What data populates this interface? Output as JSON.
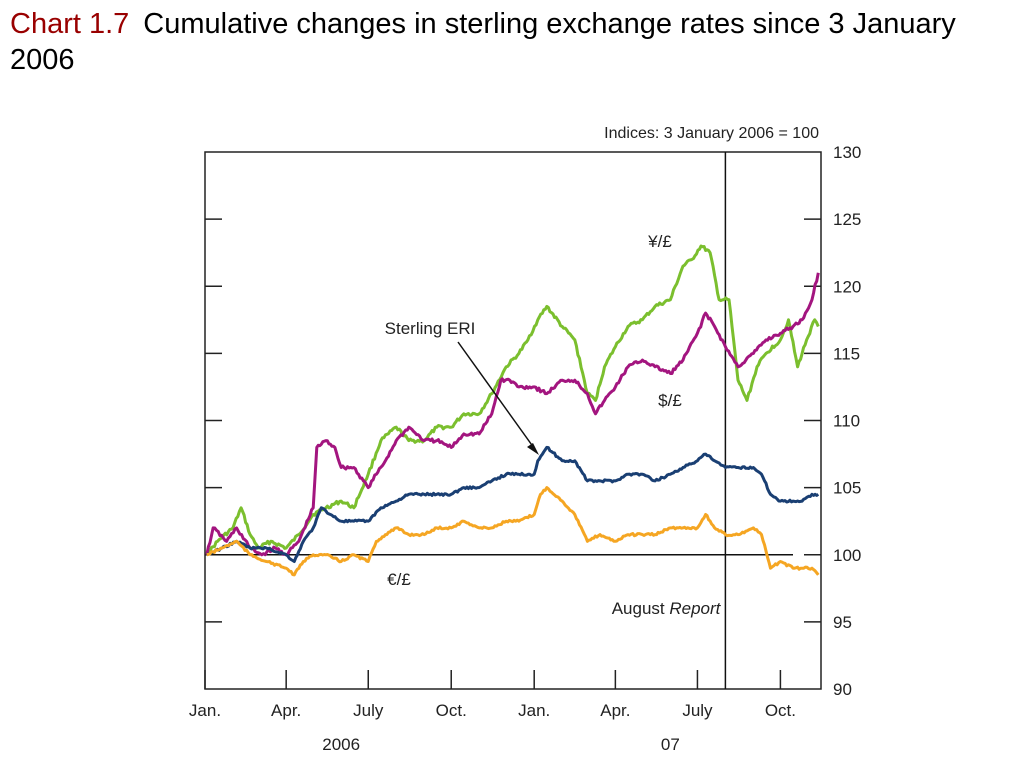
{
  "title": {
    "number": "Chart 1.7",
    "text": "Cumulative changes in sterling exchange rates since 3 January 2006"
  },
  "colors": {
    "eri": "#1a3f73",
    "eur": "#f5a623",
    "usd": "#a3157f",
    "jpy": "#7bbf2e",
    "axis": "#222222"
  },
  "chart_data": {
    "type": "line",
    "units_label": "Indices:  3 January 2006 = 100",
    "ylim": [
      90,
      130
    ],
    "yticks": [
      90,
      95,
      100,
      105,
      110,
      115,
      120,
      125,
      130
    ],
    "xlim": [
      "2006-01-01",
      "2007-11-15"
    ],
    "xticks": [
      {
        "date": "2006-01-01",
        "label": "Jan."
      },
      {
        "date": "2006-04-01",
        "label": "Apr."
      },
      {
        "date": "2006-07-01",
        "label": "July"
      },
      {
        "date": "2006-10-01",
        "label": "Oct."
      },
      {
        "date": "2007-01-01",
        "label": "Jan."
      },
      {
        "date": "2007-04-01",
        "label": "Apr."
      },
      {
        "date": "2007-07-01",
        "label": "July"
      },
      {
        "date": "2007-10-01",
        "label": "Oct."
      }
    ],
    "year_labels": [
      {
        "date": "2006-06-01",
        "label": "2006"
      },
      {
        "date": "2007-06-01",
        "label": "07"
      }
    ],
    "reference_line": {
      "value": 100
    },
    "vertical_marker": {
      "date": "2007-08-01",
      "label_prefix": "August",
      "label_italic": "Report"
    },
    "series": [
      {
        "key": "jpy",
        "name": "¥/£",
        "points": [
          [
            "2006-01-03",
            100
          ],
          [
            "2006-01-15",
            101
          ],
          [
            "2006-02-01",
            102
          ],
          [
            "2006-02-10",
            103.5
          ],
          [
            "2006-02-20",
            101.5
          ],
          [
            "2006-03-01",
            100.5
          ],
          [
            "2006-03-15",
            101
          ],
          [
            "2006-04-01",
            100.5
          ],
          [
            "2006-04-15",
            101.5
          ],
          [
            "2006-05-01",
            103
          ],
          [
            "2006-05-15",
            103.5
          ],
          [
            "2006-06-01",
            104
          ],
          [
            "2006-06-15",
            103.5
          ],
          [
            "2006-07-01",
            106
          ],
          [
            "2006-07-15",
            108.5
          ],
          [
            "2006-08-01",
            109.5
          ],
          [
            "2006-08-15",
            108.5
          ],
          [
            "2006-09-01",
            108.5
          ],
          [
            "2006-09-15",
            109.5
          ],
          [
            "2006-10-01",
            109.5
          ],
          [
            "2006-10-15",
            110.5
          ],
          [
            "2006-11-01",
            110.5
          ],
          [
            "2006-11-15",
            112
          ],
          [
            "2006-12-01",
            114
          ],
          [
            "2006-12-15",
            115
          ],
          [
            "2006-12-25",
            116
          ],
          [
            "2007-01-05",
            117.5
          ],
          [
            "2007-01-15",
            118.5
          ],
          [
            "2007-02-01",
            117
          ],
          [
            "2007-02-15",
            116
          ],
          [
            "2007-03-01",
            112
          ],
          [
            "2007-03-10",
            111.5
          ],
          [
            "2007-03-20",
            114
          ],
          [
            "2007-04-01",
            115.5
          ],
          [
            "2007-04-15",
            117
          ],
          [
            "2007-05-01",
            117.5
          ],
          [
            "2007-05-15",
            118.5
          ],
          [
            "2007-06-01",
            119
          ],
          [
            "2007-06-15",
            121.5
          ],
          [
            "2007-06-25",
            122
          ],
          [
            "2007-07-05",
            123
          ],
          [
            "2007-07-15",
            122.5
          ],
          [
            "2007-07-25",
            119
          ],
          [
            "2007-08-05",
            119
          ],
          [
            "2007-08-15",
            113
          ],
          [
            "2007-08-25",
            111.5
          ],
          [
            "2007-09-05",
            114
          ],
          [
            "2007-09-15",
            115
          ],
          [
            "2007-10-01",
            116
          ],
          [
            "2007-10-10",
            117.5
          ],
          [
            "2007-10-20",
            114
          ],
          [
            "2007-10-30",
            116
          ],
          [
            "2007-11-08",
            117.5
          ],
          [
            "2007-11-12",
            117
          ]
        ]
      },
      {
        "key": "usd",
        "name": "$/£",
        "points": [
          [
            "2006-01-03",
            100
          ],
          [
            "2006-01-10",
            102
          ],
          [
            "2006-01-25",
            101
          ],
          [
            "2006-02-05",
            102
          ],
          [
            "2006-02-20",
            100.5
          ],
          [
            "2006-03-05",
            100
          ],
          [
            "2006-03-20",
            100.5
          ],
          [
            "2006-04-01",
            100
          ],
          [
            "2006-04-15",
            101
          ],
          [
            "2006-05-01",
            103.5
          ],
          [
            "2006-05-05",
            108
          ],
          [
            "2006-05-15",
            108.5
          ],
          [
            "2006-05-25",
            108
          ],
          [
            "2006-06-01",
            106.5
          ],
          [
            "2006-06-15",
            106.5
          ],
          [
            "2006-07-01",
            105
          ],
          [
            "2006-07-10",
            106
          ],
          [
            "2006-07-20",
            107
          ],
          [
            "2006-08-01",
            108.5
          ],
          [
            "2006-08-15",
            109.5
          ],
          [
            "2006-09-01",
            108.5
          ],
          [
            "2006-09-15",
            108.5
          ],
          [
            "2006-10-01",
            108
          ],
          [
            "2006-10-15",
            109
          ],
          [
            "2006-11-01",
            109
          ],
          [
            "2006-11-15",
            110.5
          ],
          [
            "2006-11-25",
            113
          ],
          [
            "2006-12-05",
            113
          ],
          [
            "2006-12-15",
            112.5
          ],
          [
            "2007-01-01",
            112.5
          ],
          [
            "2007-01-15",
            112
          ],
          [
            "2007-02-01",
            113
          ],
          [
            "2007-02-15",
            113
          ],
          [
            "2007-03-01",
            112
          ],
          [
            "2007-03-10",
            110.5
          ],
          [
            "2007-03-20",
            111.5
          ],
          [
            "2007-04-01",
            112.5
          ],
          [
            "2007-04-15",
            114
          ],
          [
            "2007-05-01",
            114.5
          ],
          [
            "2007-05-15",
            114
          ],
          [
            "2007-06-01",
            113.5
          ],
          [
            "2007-06-15",
            114.5
          ],
          [
            "2007-07-01",
            116.5
          ],
          [
            "2007-07-10",
            118
          ],
          [
            "2007-07-20",
            117
          ],
          [
            "2007-08-01",
            115.5
          ],
          [
            "2007-08-15",
            114
          ],
          [
            "2007-09-01",
            115
          ],
          [
            "2007-09-15",
            116
          ],
          [
            "2007-10-01",
            116.5
          ],
          [
            "2007-10-15",
            117
          ],
          [
            "2007-10-25",
            117.5
          ],
          [
            "2007-11-05",
            119
          ],
          [
            "2007-11-12",
            121
          ]
        ]
      },
      {
        "key": "eri",
        "name": "Sterling ERI",
        "points": [
          [
            "2006-01-03",
            100
          ],
          [
            "2006-01-20",
            100.5
          ],
          [
            "2006-02-05",
            101
          ],
          [
            "2006-02-20",
            100.5
          ],
          [
            "2006-03-10",
            100.5
          ],
          [
            "2006-04-01",
            100
          ],
          [
            "2006-04-10",
            99.5
          ],
          [
            "2006-04-20",
            101
          ],
          [
            "2006-05-01",
            102
          ],
          [
            "2006-05-10",
            103.5
          ],
          [
            "2006-05-20",
            103
          ],
          [
            "2006-06-01",
            102.5
          ],
          [
            "2006-06-15",
            102.5
          ],
          [
            "2006-07-01",
            102.5
          ],
          [
            "2006-07-15",
            103.5
          ],
          [
            "2006-08-01",
            104
          ],
          [
            "2006-08-15",
            104.5
          ],
          [
            "2006-09-01",
            104.5
          ],
          [
            "2006-09-15",
            104.5
          ],
          [
            "2006-10-01",
            104.5
          ],
          [
            "2006-10-15",
            105
          ],
          [
            "2006-11-01",
            105
          ],
          [
            "2006-11-15",
            105.5
          ],
          [
            "2006-12-01",
            106
          ],
          [
            "2006-12-15",
            106
          ],
          [
            "2007-01-01",
            106
          ],
          [
            "2007-01-05",
            107
          ],
          [
            "2007-01-15",
            108
          ],
          [
            "2007-02-01",
            107
          ],
          [
            "2007-02-15",
            107
          ],
          [
            "2007-03-01",
            105.5
          ],
          [
            "2007-03-15",
            105.5
          ],
          [
            "2007-04-01",
            105.5
          ],
          [
            "2007-04-15",
            106
          ],
          [
            "2007-05-01",
            106
          ],
          [
            "2007-05-15",
            105.5
          ],
          [
            "2007-06-01",
            106
          ],
          [
            "2007-06-15",
            106.5
          ],
          [
            "2007-07-01",
            107
          ],
          [
            "2007-07-10",
            107.5
          ],
          [
            "2007-07-20",
            107
          ],
          [
            "2007-08-01",
            106.5
          ],
          [
            "2007-08-15",
            106.5
          ],
          [
            "2007-09-01",
            106.5
          ],
          [
            "2007-09-10",
            106
          ],
          [
            "2007-09-20",
            104.5
          ],
          [
            "2007-10-01",
            104
          ],
          [
            "2007-10-15",
            104
          ],
          [
            "2007-10-25",
            104
          ],
          [
            "2007-11-05",
            104.5
          ],
          [
            "2007-11-12",
            104.5
          ]
        ]
      },
      {
        "key": "eur",
        "name": "€/£",
        "points": [
          [
            "2006-01-03",
            100
          ],
          [
            "2006-01-20",
            100.5
          ],
          [
            "2006-02-05",
            101
          ],
          [
            "2006-02-20",
            100
          ],
          [
            "2006-03-10",
            99.5
          ],
          [
            "2006-04-01",
            99
          ],
          [
            "2006-04-10",
            98.5
          ],
          [
            "2006-04-20",
            99.5
          ],
          [
            "2006-05-01",
            100
          ],
          [
            "2006-05-15",
            100
          ],
          [
            "2006-06-01",
            99.5
          ],
          [
            "2006-06-15",
            100
          ],
          [
            "2006-07-01",
            99.5
          ],
          [
            "2006-07-10",
            101
          ],
          [
            "2006-07-20",
            101.5
          ],
          [
            "2006-08-01",
            102
          ],
          [
            "2006-08-15",
            101.5
          ],
          [
            "2006-09-01",
            101.5
          ],
          [
            "2006-09-15",
            102
          ],
          [
            "2006-10-01",
            102
          ],
          [
            "2006-10-15",
            102.5
          ],
          [
            "2006-11-01",
            102
          ],
          [
            "2006-11-15",
            102
          ],
          [
            "2006-12-01",
            102.5
          ],
          [
            "2006-12-15",
            102.5
          ],
          [
            "2007-01-01",
            103
          ],
          [
            "2007-01-08",
            104.5
          ],
          [
            "2007-01-15",
            105
          ],
          [
            "2007-02-01",
            104
          ],
          [
            "2007-02-15",
            103
          ],
          [
            "2007-03-01",
            101
          ],
          [
            "2007-03-15",
            101.5
          ],
          [
            "2007-04-01",
            101
          ],
          [
            "2007-04-15",
            101.5
          ],
          [
            "2007-05-01",
            101.5
          ],
          [
            "2007-05-15",
            101.5
          ],
          [
            "2007-06-01",
            102
          ],
          [
            "2007-06-15",
            102
          ],
          [
            "2007-07-01",
            102
          ],
          [
            "2007-07-10",
            103
          ],
          [
            "2007-07-20",
            102
          ],
          [
            "2007-08-01",
            101.5
          ],
          [
            "2007-08-15",
            101.5
          ],
          [
            "2007-09-01",
            102
          ],
          [
            "2007-09-10",
            101.5
          ],
          [
            "2007-09-20",
            99
          ],
          [
            "2007-10-01",
            99.5
          ],
          [
            "2007-10-15",
            99
          ],
          [
            "2007-10-25",
            99
          ],
          [
            "2007-11-05",
            99
          ],
          [
            "2007-11-12",
            98.5
          ]
        ]
      }
    ],
    "labels": [
      {
        "series": "jpy",
        "text": "¥/£"
      },
      {
        "series": "usd",
        "text": "$/£"
      },
      {
        "series": "eri",
        "text": "Sterling ERI"
      },
      {
        "series": "eur",
        "text": "€/£"
      }
    ]
  }
}
